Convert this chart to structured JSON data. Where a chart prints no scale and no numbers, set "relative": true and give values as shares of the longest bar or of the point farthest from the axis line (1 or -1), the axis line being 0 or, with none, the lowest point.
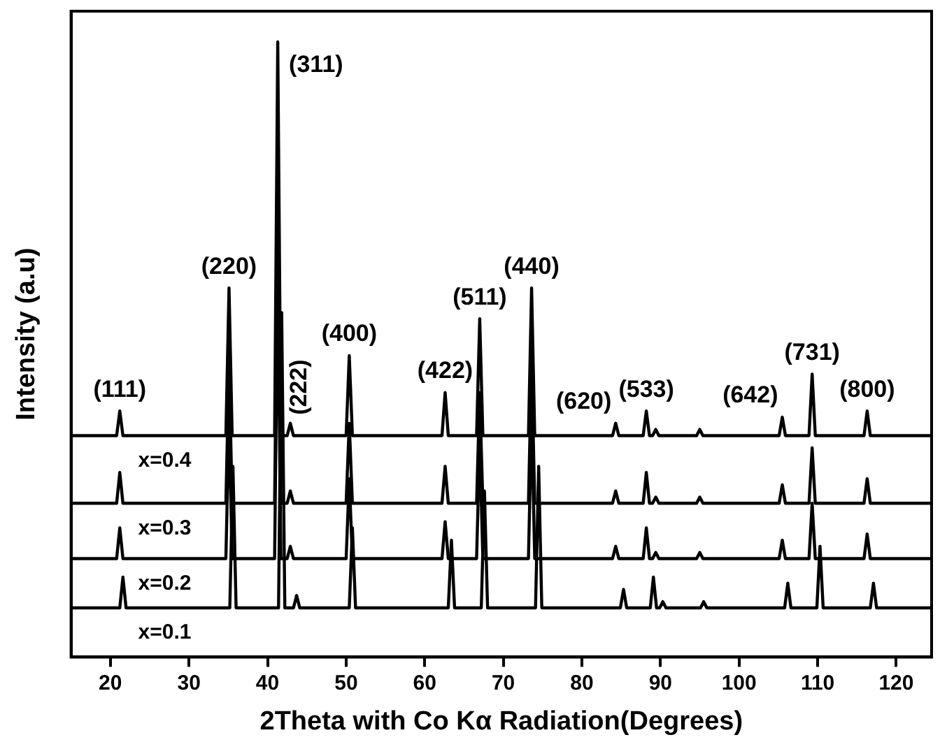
{
  "chart_data": {
    "type": "line",
    "relative": true,
    "xlabel": "2Theta with Co Kα Radiation(Degrees)",
    "ylabel": "Intensity (a.u)",
    "xlim": [
      15,
      124.5
    ],
    "xticks": [
      20,
      30,
      40,
      50,
      60,
      70,
      80,
      90,
      100,
      110,
      120
    ],
    "legend": false,
    "grid": false,
    "series": [
      {
        "name": "x=0.4",
        "color": "#000000",
        "x": [
          15,
          20.8,
          21.2,
          21.6,
          34.7,
          35.1,
          35.5,
          40.9,
          41.3,
          41.7,
          42.5,
          42.9,
          43.3,
          50.0,
          50.4,
          50.8,
          62.2,
          62.6,
          63.0,
          66.6,
          67.0,
          67.4,
          73.2,
          73.6,
          74.0,
          83.9,
          84.3,
          84.7,
          87.8,
          88.2,
          88.6,
          89.0,
          89.4,
          89.8,
          94.6,
          95.0,
          95.4,
          105.1,
          105.5,
          105.9,
          108.9,
          109.3,
          109.7,
          115.9,
          116.3,
          116.7,
          124.5
        ],
        "values": [
          0.36,
          0.36,
          0.4,
          0.36,
          0.36,
          0.6,
          0.36,
          0.36,
          1.0,
          0.36,
          0.36,
          0.38,
          0.36,
          0.36,
          0.49,
          0.36,
          0.36,
          0.43,
          0.36,
          0.36,
          0.55,
          0.36,
          0.36,
          0.6,
          0.36,
          0.36,
          0.38,
          0.36,
          0.36,
          0.4,
          0.36,
          0.36,
          0.37,
          0.36,
          0.36,
          0.37,
          0.36,
          0.36,
          0.39,
          0.36,
          0.36,
          0.46,
          0.36,
          0.36,
          0.4,
          0.36,
          0.36
        ]
      },
      {
        "name": "x=0.3",
        "color": "#000000",
        "x": [
          15,
          20.8,
          21.2,
          21.6,
          34.7,
          35.1,
          35.5,
          40.9,
          41.3,
          41.7,
          42.5,
          42.9,
          43.3,
          50.0,
          50.4,
          50.8,
          62.2,
          62.6,
          63.0,
          66.6,
          67.0,
          67.4,
          73.2,
          73.6,
          74.0,
          83.9,
          84.3,
          84.7,
          87.8,
          88.2,
          88.6,
          89.0,
          89.4,
          89.8,
          94.6,
          95.0,
          95.4,
          105.1,
          105.5,
          105.9,
          108.9,
          109.3,
          109.7,
          115.9,
          116.3,
          116.7,
          124.5
        ],
        "values": [
          0.25,
          0.25,
          0.3,
          0.25,
          0.25,
          0.48,
          0.25,
          0.25,
          0.71,
          0.25,
          0.25,
          0.27,
          0.25,
          0.25,
          0.38,
          0.25,
          0.25,
          0.31,
          0.25,
          0.25,
          0.43,
          0.25,
          0.25,
          0.48,
          0.25,
          0.25,
          0.27,
          0.25,
          0.25,
          0.3,
          0.25,
          0.25,
          0.26,
          0.25,
          0.25,
          0.26,
          0.25,
          0.25,
          0.28,
          0.25,
          0.25,
          0.34,
          0.25,
          0.25,
          0.29,
          0.25,
          0.25
        ]
      },
      {
        "name": "x=0.2",
        "color": "#000000",
        "x": [
          15,
          20.8,
          21.2,
          21.6,
          34.7,
          35.1,
          35.5,
          40.9,
          41.3,
          41.7,
          42.5,
          42.9,
          43.3,
          50.0,
          50.4,
          50.8,
          62.2,
          62.6,
          63.0,
          66.6,
          67.0,
          67.4,
          73.2,
          73.6,
          74.0,
          83.9,
          84.3,
          84.7,
          87.8,
          88.2,
          88.6,
          89.0,
          89.4,
          89.8,
          94.6,
          95.0,
          95.4,
          105.1,
          105.5,
          105.9,
          108.9,
          109.3,
          109.7,
          115.9,
          116.3,
          116.7,
          124.5
        ],
        "values": [
          0.16,
          0.16,
          0.21,
          0.16,
          0.16,
          0.39,
          0.16,
          0.16,
          0.62,
          0.16,
          0.16,
          0.18,
          0.16,
          0.16,
          0.29,
          0.16,
          0.16,
          0.22,
          0.16,
          0.16,
          0.35,
          0.16,
          0.16,
          0.39,
          0.16,
          0.16,
          0.18,
          0.16,
          0.16,
          0.21,
          0.16,
          0.16,
          0.17,
          0.16,
          0.16,
          0.17,
          0.16,
          0.16,
          0.19,
          0.16,
          0.16,
          0.25,
          0.16,
          0.16,
          0.2,
          0.16,
          0.16
        ]
      },
      {
        "name": "x=0.1",
        "color": "#000000",
        "x": [
          15,
          21.2,
          21.6,
          22.0,
          35.2,
          35.6,
          36.0,
          41.4,
          41.8,
          42.2,
          43.3,
          43.7,
          44.1,
          50.4,
          50.8,
          51.2,
          63.0,
          63.4,
          63.8,
          67.2,
          67.6,
          68.0,
          74.1,
          74.5,
          74.9,
          84.9,
          85.3,
          85.7,
          88.7,
          89.1,
          89.5,
          89.9,
          90.3,
          90.7,
          95.1,
          95.5,
          95.9,
          105.8,
          106.2,
          106.6,
          109.9,
          110.3,
          110.7,
          116.7,
          117.1,
          117.5,
          124.5
        ],
        "values": [
          0.08,
          0.08,
          0.13,
          0.08,
          0.08,
          0.31,
          0.08,
          0.08,
          0.56,
          0.08,
          0.08,
          0.1,
          0.08,
          0.08,
          0.21,
          0.08,
          0.08,
          0.19,
          0.08,
          0.08,
          0.27,
          0.08,
          0.08,
          0.31,
          0.08,
          0.08,
          0.11,
          0.08,
          0.08,
          0.13,
          0.08,
          0.08,
          0.09,
          0.08,
          0.08,
          0.09,
          0.08,
          0.08,
          0.12,
          0.08,
          0.08,
          0.18,
          0.08,
          0.08,
          0.12,
          0.08,
          0.08
        ]
      }
    ],
    "annotations": [
      {
        "text": "(111)",
        "x": 21.2,
        "y": 0.4
      },
      {
        "text": "(220)",
        "x": 35.1,
        "y": 0.6
      },
      {
        "text": "(311)",
        "x": 41.3,
        "y": 1.0
      },
      {
        "text": "(222)",
        "x": 42.9,
        "y": 0.38
      },
      {
        "text": "(400)",
        "x": 50.4,
        "y": 0.49
      },
      {
        "text": "(422)",
        "x": 62.6,
        "y": 0.43
      },
      {
        "text": "(511)",
        "x": 67.0,
        "y": 0.55
      },
      {
        "text": "(440)",
        "x": 73.6,
        "y": 0.6
      },
      {
        "text": "(620)",
        "x": 84.3,
        "y": 0.38
      },
      {
        "text": "(533)",
        "x": 88.2,
        "y": 0.4
      },
      {
        "text": "(642)",
        "x": 105.5,
        "y": 0.39
      },
      {
        "text": "(731)",
        "x": 109.3,
        "y": 0.46
      },
      {
        "text": "(800)",
        "x": 116.3,
        "y": 0.4
      }
    ]
  }
}
